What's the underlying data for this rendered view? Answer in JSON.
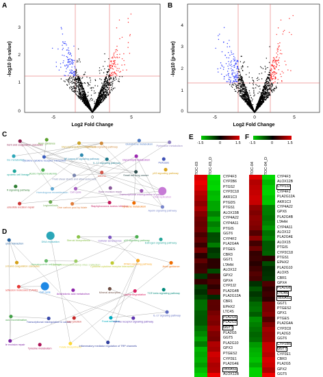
{
  "panels": {
    "A": {
      "letter": "A",
      "xlabel": "Log2 Fold Change",
      "ylabel": "-log10 (p-value)",
      "xticks": [
        "-5",
        "0",
        "5"
      ],
      "yticks": [
        "3",
        "2",
        "1",
        "0"
      ]
    },
    "B": {
      "letter": "B",
      "xlabel": "Log2 Fold Change",
      "ylabel": "-log10 (p-value)",
      "xticks": [
        "-5",
        "0",
        "5"
      ],
      "yticks": [
        "4",
        "3",
        "2",
        "1",
        "0"
      ]
    },
    "C": {
      "letter": "C"
    },
    "D": {
      "letter": "D"
    },
    "E": {
      "letter": "E",
      "legend_ticks": [
        "-1.5",
        "0",
        "1.5"
      ],
      "columns": [
        "ITOC-03",
        "ITOC-03_D"
      ],
      "genes": [
        "CYP4F3",
        "CYP2B6",
        "PTGS2",
        "CYP2C18",
        "AKR1C3",
        "PTGDS",
        "PTGS1",
        "ALOX15B",
        "CYP4A22",
        "CYP4A11",
        "PTGIS",
        "GGT6",
        "CYP4F2",
        "PLA2G4A",
        "PTGES",
        "CBR3",
        "GGT1",
        "LTA4H",
        "ALOX12",
        "GPX2",
        "GPX4",
        "CYP2J2",
        "PLA2G4B",
        "PLA2G12A",
        "CBR1",
        "EPHX2",
        "LTC4S",
        "PLA2G6",
        "PLA2G3",
        "GGT7",
        "PLA2G5",
        "GGT5",
        "PLA2G10",
        "GPX3",
        "PTGES2",
        "CYP2E1",
        "PLA2G4E",
        "TBXAS1",
        "ALOX12B"
      ],
      "boxed": [
        "PLA2G6",
        "PLA2G3",
        "GGT7",
        "TBXAS1"
      ]
    },
    "F": {
      "letter": "F",
      "legend_ticks": [
        "-1.5",
        "0",
        "1.5"
      ],
      "columns": [
        "ITOC-04",
        "ITOC-04_D"
      ],
      "genes": [
        "CYP4F3",
        "ALOX12B",
        "CYP2J2",
        "CYP4F2",
        "PLA2G12A",
        "AKR1C3",
        "CYP4A22",
        "GPX6",
        "PLA2G4B",
        "LTA4H",
        "CYP4A11",
        "ALOX12",
        "PLA2G4E",
        "ALOX15",
        "PTGIS",
        "CYP2C18",
        "PTGS1",
        "EPHX2",
        "PLA2G10",
        "ALOX5",
        "CBR1",
        "GPX4",
        "PLA2G6",
        "LTC4S",
        "TBXAS1",
        "GGT1",
        "PTGES2",
        "GPX1",
        "PTGES",
        "PLA2G4A",
        "CYP2C8",
        "PLA2G3",
        "GGT6",
        "CYP2B6",
        "GGT7",
        "CYP2E1",
        "CBR3",
        "PLA2G5",
        "GPX2",
        "GGT5"
      ],
      "boxed": [
        "CYP2J2",
        "PLA2G6",
        "LTC4S",
        "TBXAS1",
        "CYP2B6",
        "GGT7"
      ]
    }
  },
  "network_C": {
    "labels": [
      "Complement and coagulation cascades",
      "Axon guidance",
      "Glycosphingolipid biosynthesis",
      "TGF-beta signaling pathway",
      "Glutathione metabolism",
      "Pyrimidine metabolism",
      "Purine metabolism",
      "Cytokine-cytokine receptor interaction",
      "NF-kappa B signaling pathway",
      "IL-17 signaling pathway",
      "Glycerolipid metabolism",
      "Pertussis",
      "Hematopoietic cell lineage",
      "Acute myeloid leukemia",
      "Fluid shear stress and atherosclerosis",
      "Glioma",
      "Small cell lung cancer",
      "p53 signaling pathway",
      "PPAR signaling pathway",
      "Homologous recombination",
      "Cell cycle",
      "Base excision repair",
      "Transcriptional misregulation in cancer",
      "DNA replication",
      "Nucleotide excision repair",
      "Legionellosis",
      "One carbon pool by folate",
      "Staphylococcus aureus infection",
      "Tyrosine metabolism",
      "Apelin signaling pathway"
    ],
    "colors": [
      "#8b1a4a",
      "#5aa02c",
      "#c9a227",
      "#d08a3a",
      "#4b78c3",
      "#8e7fc0",
      "#2aa6b8",
      "#3c5fbf",
      "#2e8ab0",
      "#1d7a8c",
      "#9c27b0",
      "#3f51b5",
      "#1aa59a",
      "#4caf50",
      "#7a86b0",
      "#d4574a",
      "#2f4f4f",
      "#d9a21a",
      "#2e7d32",
      "#5fa8d3",
      "#a45fbf",
      "#8a5a9a",
      "#9a4fb0",
      "#c77ad6",
      "#cc3333",
      "#6aa84f",
      "#e07b39",
      "#c2185b",
      "#ef6c00",
      "#7986cb"
    ]
  },
  "network_D": {
    "labels": [
      "ECM-receptor interaction",
      "DNA replication",
      "Steroid biosynthesis",
      "Cellular senescence",
      "p53 signaling pathway",
      "Estrogen signaling pathway",
      "Complement and coagulation cascades",
      "Hematopoietic cell lineage",
      "Human immunodeficiency virus 1 infection",
      "Cytokine-cytokine receptor interaction",
      "PPAR signaling pathway",
      "Axon guidance",
      "Cell adhesion molecules (CAMs)",
      "Cell cycle",
      "Arachidonic acid metabolism",
      "Mineral absorption",
      "Lysine degradation",
      "TGF-beta signaling pathway",
      "Homologous recombination",
      "Transcriptional misregulation in cancer",
      "Gap junction",
      "Focal adhesion",
      "Toll-like receptor signaling pathway",
      "IL-17 signaling pathway",
      "Nucleotide excision repair",
      "Tyrosine metabolism",
      "Folate biosynthesis",
      "Inflammatory mediator regulation of TRP channels"
    ],
    "colors": [
      "#1f5f9f",
      "#2aa6b8",
      "#8bc34a",
      "#7e57c2",
      "#4caf50",
      "#26a69a",
      "#d4a017",
      "#66bb6a",
      "#9ccc65",
      "#c0ca33",
      "#f9a825",
      "#ef6c00",
      "#e53935",
      "#1e88e5",
      "#8e24aa",
      "#6d4c41",
      "#d81b60",
      "#00897b",
      "#43a047",
      "#3949ab",
      "#c62828",
      "#00acc1",
      "#5e35b1",
      "#5c6bc0",
      "#7b1fa2",
      "#ad1457",
      "#fdd835",
      "#303f9f"
    ]
  }
}
